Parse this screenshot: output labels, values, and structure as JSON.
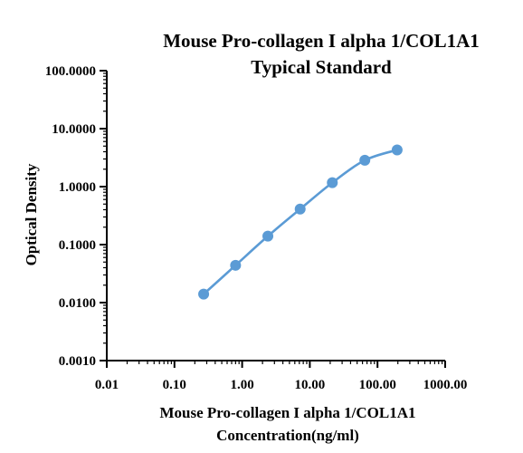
{
  "chart_data": {
    "type": "scatter",
    "title_lines": [
      "Mouse Pro-collagen I alpha 1/COL1A1",
      "Typical Standard"
    ],
    "xlabel_lines": [
      "Mouse Pro-collagen I alpha 1/COL1A1",
      "Concentration(ng/ml)"
    ],
    "ylabel": "Optical Density",
    "x_scale": "log",
    "y_scale": "log",
    "xlim": [
      0.01,
      1000
    ],
    "ylim": [
      0.001,
      100
    ],
    "x_tick_labels": [
      "0.01",
      "0.10",
      "1.00",
      "10.00",
      "100.00",
      "1000.00"
    ],
    "y_tick_labels": [
      "0.0010",
      "0.0100",
      "0.1000",
      "1.0000",
      "10.0000",
      "100.0000"
    ],
    "grid": false,
    "series": [
      {
        "x": [
          0.27,
          0.8,
          2.4,
          7.2,
          21.5,
          65,
          195
        ],
        "y": [
          0.014,
          0.044,
          0.14,
          0.41,
          1.17,
          2.85,
          4.3
        ]
      }
    ],
    "colors": {
      "series": "#5b9bd5",
      "axis": "#000000"
    }
  }
}
